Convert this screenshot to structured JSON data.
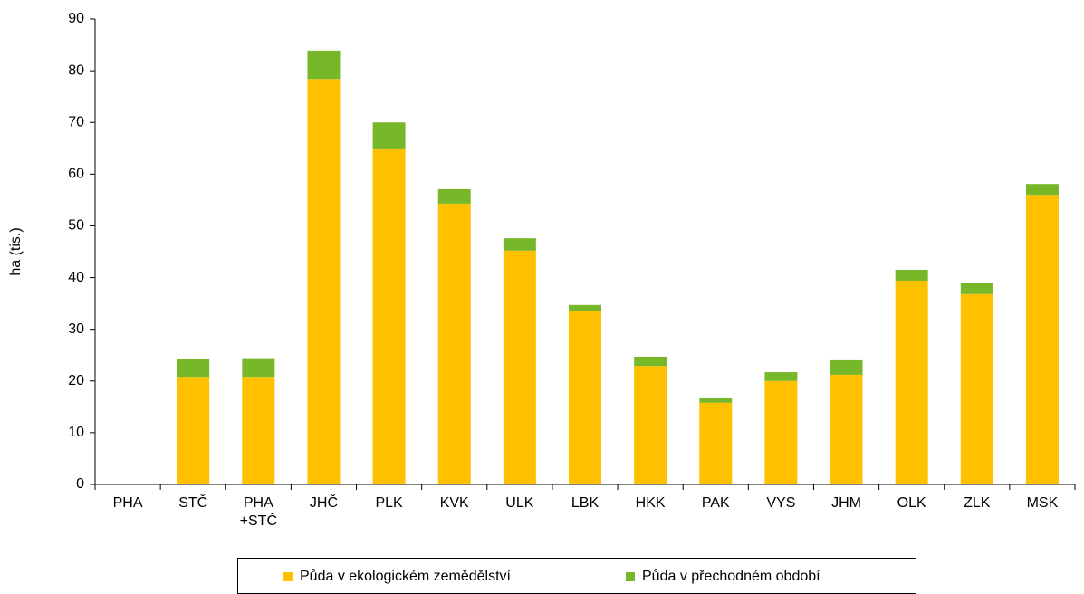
{
  "chart_data": {
    "type": "stacked-bar",
    "y_label": "ha (tis.)",
    "categories": [
      "PHA",
      "STČ",
      "PHA\n+STČ",
      "JHČ",
      "PLK",
      "KVK",
      "ULK",
      "LBK",
      "HKK",
      "PAK",
      "VYS",
      "JHM",
      "OLK",
      "ZLK",
      "MSK"
    ],
    "series": [
      {
        "name": "Půda v ekologickém zemědělství",
        "color": "#ffc000",
        "values": [
          0,
          20.8,
          20.8,
          78.4,
          64.8,
          54.3,
          45.2,
          33.6,
          22.9,
          15.8,
          20.0,
          21.2,
          39.4,
          36.8,
          56.0
        ]
      },
      {
        "name": "Půda v přechodném období",
        "color": "#77b82a",
        "values": [
          0,
          3.5,
          3.6,
          5.5,
          5.2,
          2.8,
          2.4,
          1.1,
          1.8,
          1.0,
          1.7,
          2.8,
          2.1,
          2.1,
          2.1
        ]
      }
    ],
    "ylim": [
      0,
      90
    ],
    "yticks": [
      0,
      10,
      20,
      30,
      40,
      50,
      60,
      70,
      80,
      90
    ],
    "grid": false,
    "legend": "bottom"
  }
}
